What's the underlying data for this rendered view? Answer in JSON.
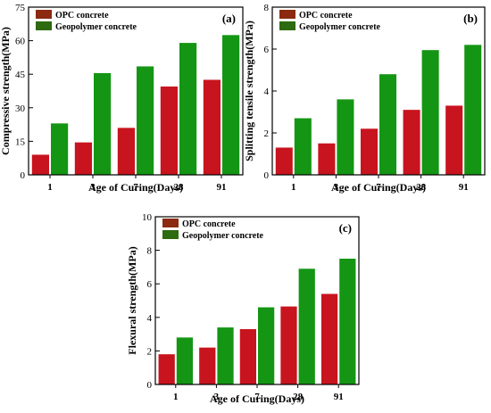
{
  "chart_data": [
    {
      "type": "bar",
      "panel": "(a)",
      "categories": [
        "1",
        "3",
        "7",
        "28",
        "91"
      ],
      "series": [
        {
          "name": "OPC concrete",
          "values": [
            9,
            14.5,
            21,
            39.5,
            42.5
          ]
        },
        {
          "name": "Geopolymer concrete",
          "values": [
            23,
            45.5,
            48.5,
            59,
            62.5
          ]
        }
      ],
      "xlabel": "Age of Curing(Days)",
      "ylabel": "Compressive strength(MPa)",
      "ylim": [
        0,
        75
      ],
      "yticks": [
        0,
        15,
        30,
        45,
        60,
        75
      ],
      "legend": "top-left",
      "grid": false
    },
    {
      "type": "bar",
      "panel": "(b)",
      "categories": [
        "1",
        "3",
        "7",
        "28",
        "91"
      ],
      "series": [
        {
          "name": "OPC concrete",
          "values": [
            1.3,
            1.5,
            2.2,
            3.1,
            3.3
          ]
        },
        {
          "name": "Geopolymer concrete",
          "values": [
            2.7,
            3.6,
            4.8,
            5.95,
            6.2
          ]
        }
      ],
      "xlabel": "Age of Curing(Days)",
      "ylabel": "Splitting tensile strength(MPa)",
      "ylim": [
        0,
        8
      ],
      "yticks": [
        0,
        2,
        4,
        6,
        8
      ],
      "legend": "top-left",
      "grid": false
    },
    {
      "type": "bar",
      "panel": "(c)",
      "categories": [
        "1",
        "3",
        "7",
        "28",
        "91"
      ],
      "series": [
        {
          "name": "OPC concrete",
          "values": [
            1.8,
            2.2,
            3.3,
            4.65,
            5.4
          ]
        },
        {
          "name": "Geopolymer concrete",
          "values": [
            2.8,
            3.4,
            4.6,
            6.9,
            7.5
          ]
        }
      ],
      "xlabel": "Age of Curing(Days)",
      "ylabel": "Flexural strength(MPa)",
      "ylim": [
        0,
        10
      ],
      "yticks": [
        0,
        2,
        4,
        6,
        8,
        10
      ],
      "legend": "top-left",
      "grid": false
    }
  ],
  "colors": {
    "opc": "#c8141e",
    "geo": "#149614",
    "opc_legend": "#8b2a10",
    "geo_legend": "#2e6a10"
  }
}
